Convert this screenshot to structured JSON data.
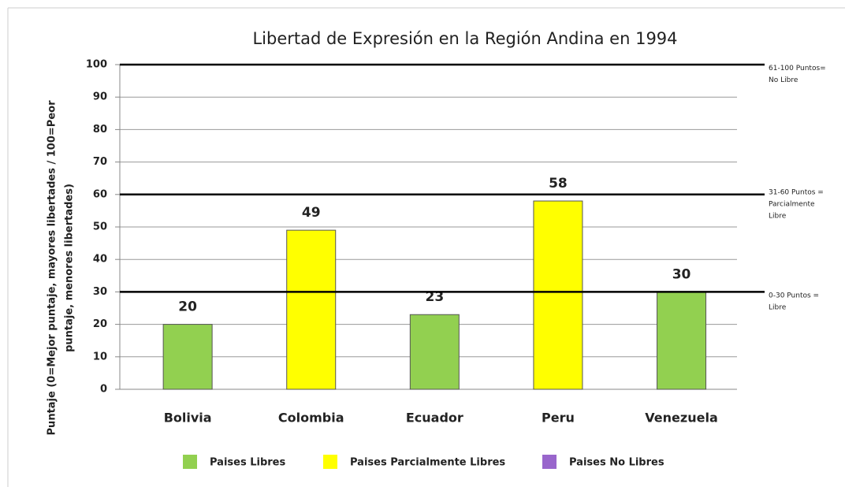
{
  "chart_data": {
    "type": "bar",
    "title": "Libertad de Expresión en la Región Andina en 1994",
    "y_label": [
      "Puntaje (0=Mejor puntaje, mayores libertades / 100=Peor",
      "puntaje, menores libertades)"
    ],
    "categories": [
      "Bolivia",
      "Colombia",
      "Ecuador",
      "Peru",
      "Venezuela"
    ],
    "values": [
      20,
      49,
      23,
      58,
      30
    ],
    "colors": [
      "#92d050",
      "#ffff00",
      "#92d050",
      "#ffff00",
      "#92d050"
    ],
    "ylim": [
      0,
      100
    ],
    "yticks": [
      0,
      10,
      20,
      30,
      40,
      50,
      60,
      70,
      80,
      90,
      100
    ],
    "grid": true,
    "thresholds": [
      {
        "value": 30,
        "label": [
          "0-30 Puntos =",
          "Libre"
        ]
      },
      {
        "value": 60,
        "label": [
          "31-60 Puntos =",
          "Parcialmente",
          "Libre"
        ]
      },
      {
        "value": 100,
        "label": [
          "61-100 Puntos=",
          "No Libre"
        ]
      }
    ],
    "legend": [
      {
        "name": "Paises Libres",
        "color": "#92d050"
      },
      {
        "name": "Paises Parcialmente Libres",
        "color": "#ffff00"
      },
      {
        "name": "Paises No Libres",
        "color": "#9966cc"
      }
    ]
  }
}
